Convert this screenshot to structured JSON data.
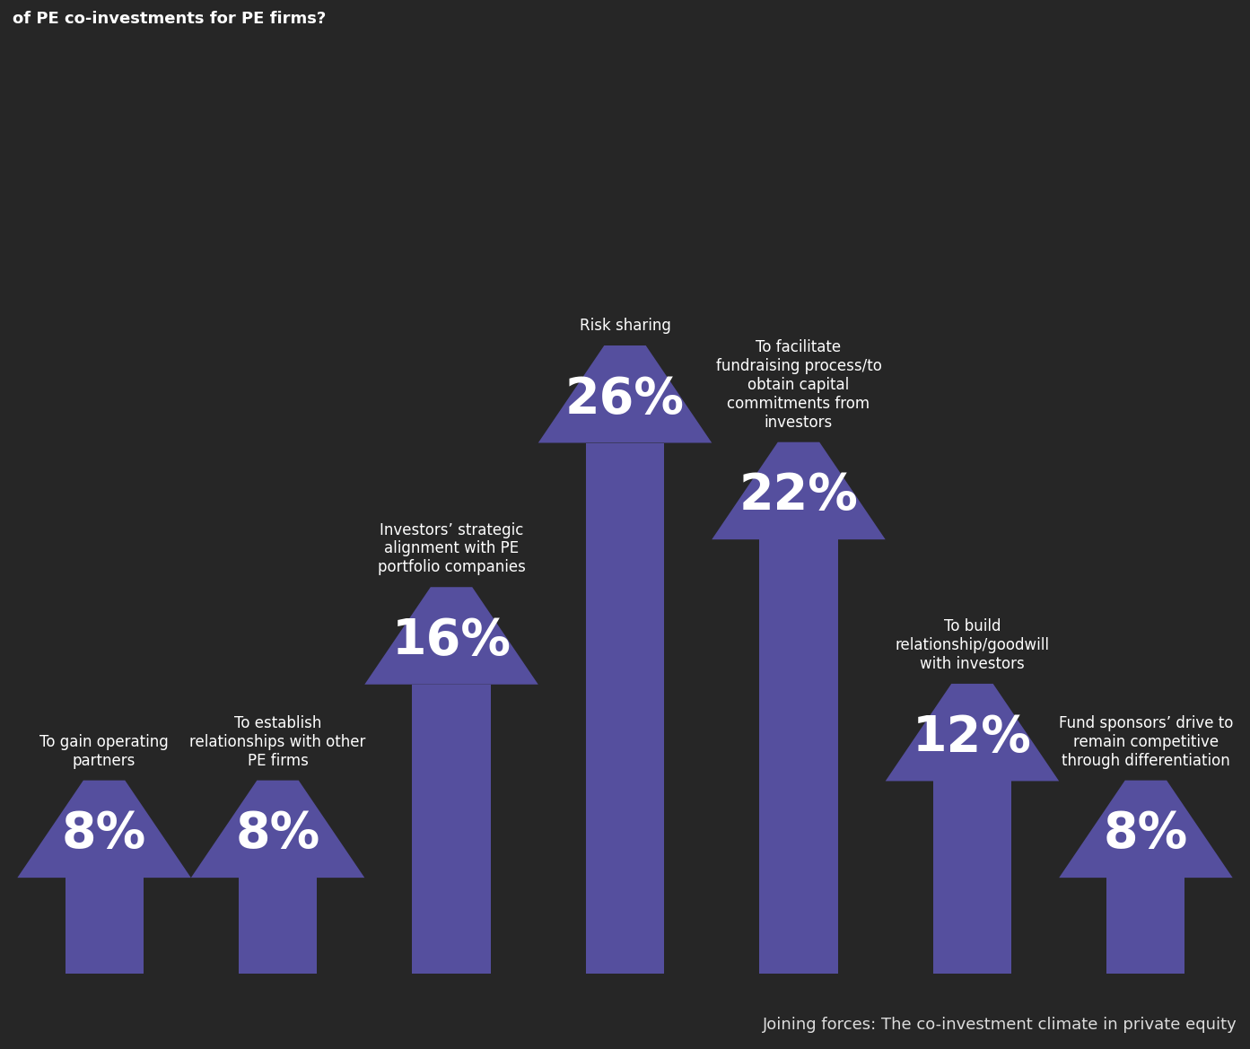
{
  "chart_data": {
    "type": "bar",
    "title": "of PE co-investments for PE firms?",
    "source": "Joining forces: The co-investment climate in private equity",
    "categories": [
      "To gain operating partners",
      "To establish relationships with other PE firms",
      "Investors’ strategic alignment with PE portfolio companies",
      "Risk sharing",
      "To facilitate fundraising process/to obtain capital commitments from investors",
      "To build relationship/goodwill with investors",
      "Fund sponsors’ drive to remain competitive through differentiation"
    ],
    "values": [
      8,
      8,
      16,
      26,
      22,
      12,
      8
    ],
    "value_labels": [
      "8%",
      "8%",
      "16%",
      "26%",
      "22%",
      "12%",
      "8%"
    ],
    "color": "#554f9e",
    "data_labels": true,
    "tick_labels": false,
    "grid": false
  }
}
